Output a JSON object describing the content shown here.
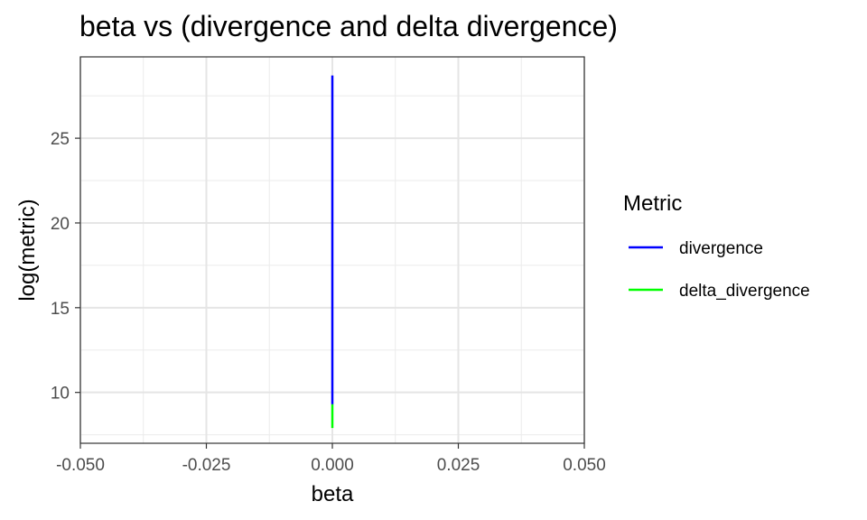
{
  "chart_data": {
    "type": "line",
    "title": "beta vs (divergence and delta divergence)",
    "xlabel": "beta",
    "ylabel": "log(metric)",
    "xlim": [
      -0.05,
      0.05
    ],
    "ylim": [
      7.0,
      29.8
    ],
    "x_ticks": [
      -0.05,
      -0.025,
      0.0,
      0.025,
      0.05
    ],
    "x_tick_labels": [
      "-0.050",
      "-0.025",
      "0.000",
      "0.025",
      "0.050"
    ],
    "y_ticks": [
      10,
      15,
      20,
      25
    ],
    "y_tick_labels": [
      "10",
      "15",
      "20",
      "25"
    ],
    "grid": true,
    "legend": {
      "title": "Metric",
      "placement": "right"
    },
    "series": [
      {
        "name": "divergence",
        "color": "#0000ff",
        "x": [
          0.0,
          0.0
        ],
        "y": [
          9.3,
          28.7
        ]
      },
      {
        "name": "delta_divergence",
        "color": "#00ff00",
        "x": [
          0.0,
          0.0
        ],
        "y": [
          7.9,
          9.3
        ]
      }
    ]
  }
}
